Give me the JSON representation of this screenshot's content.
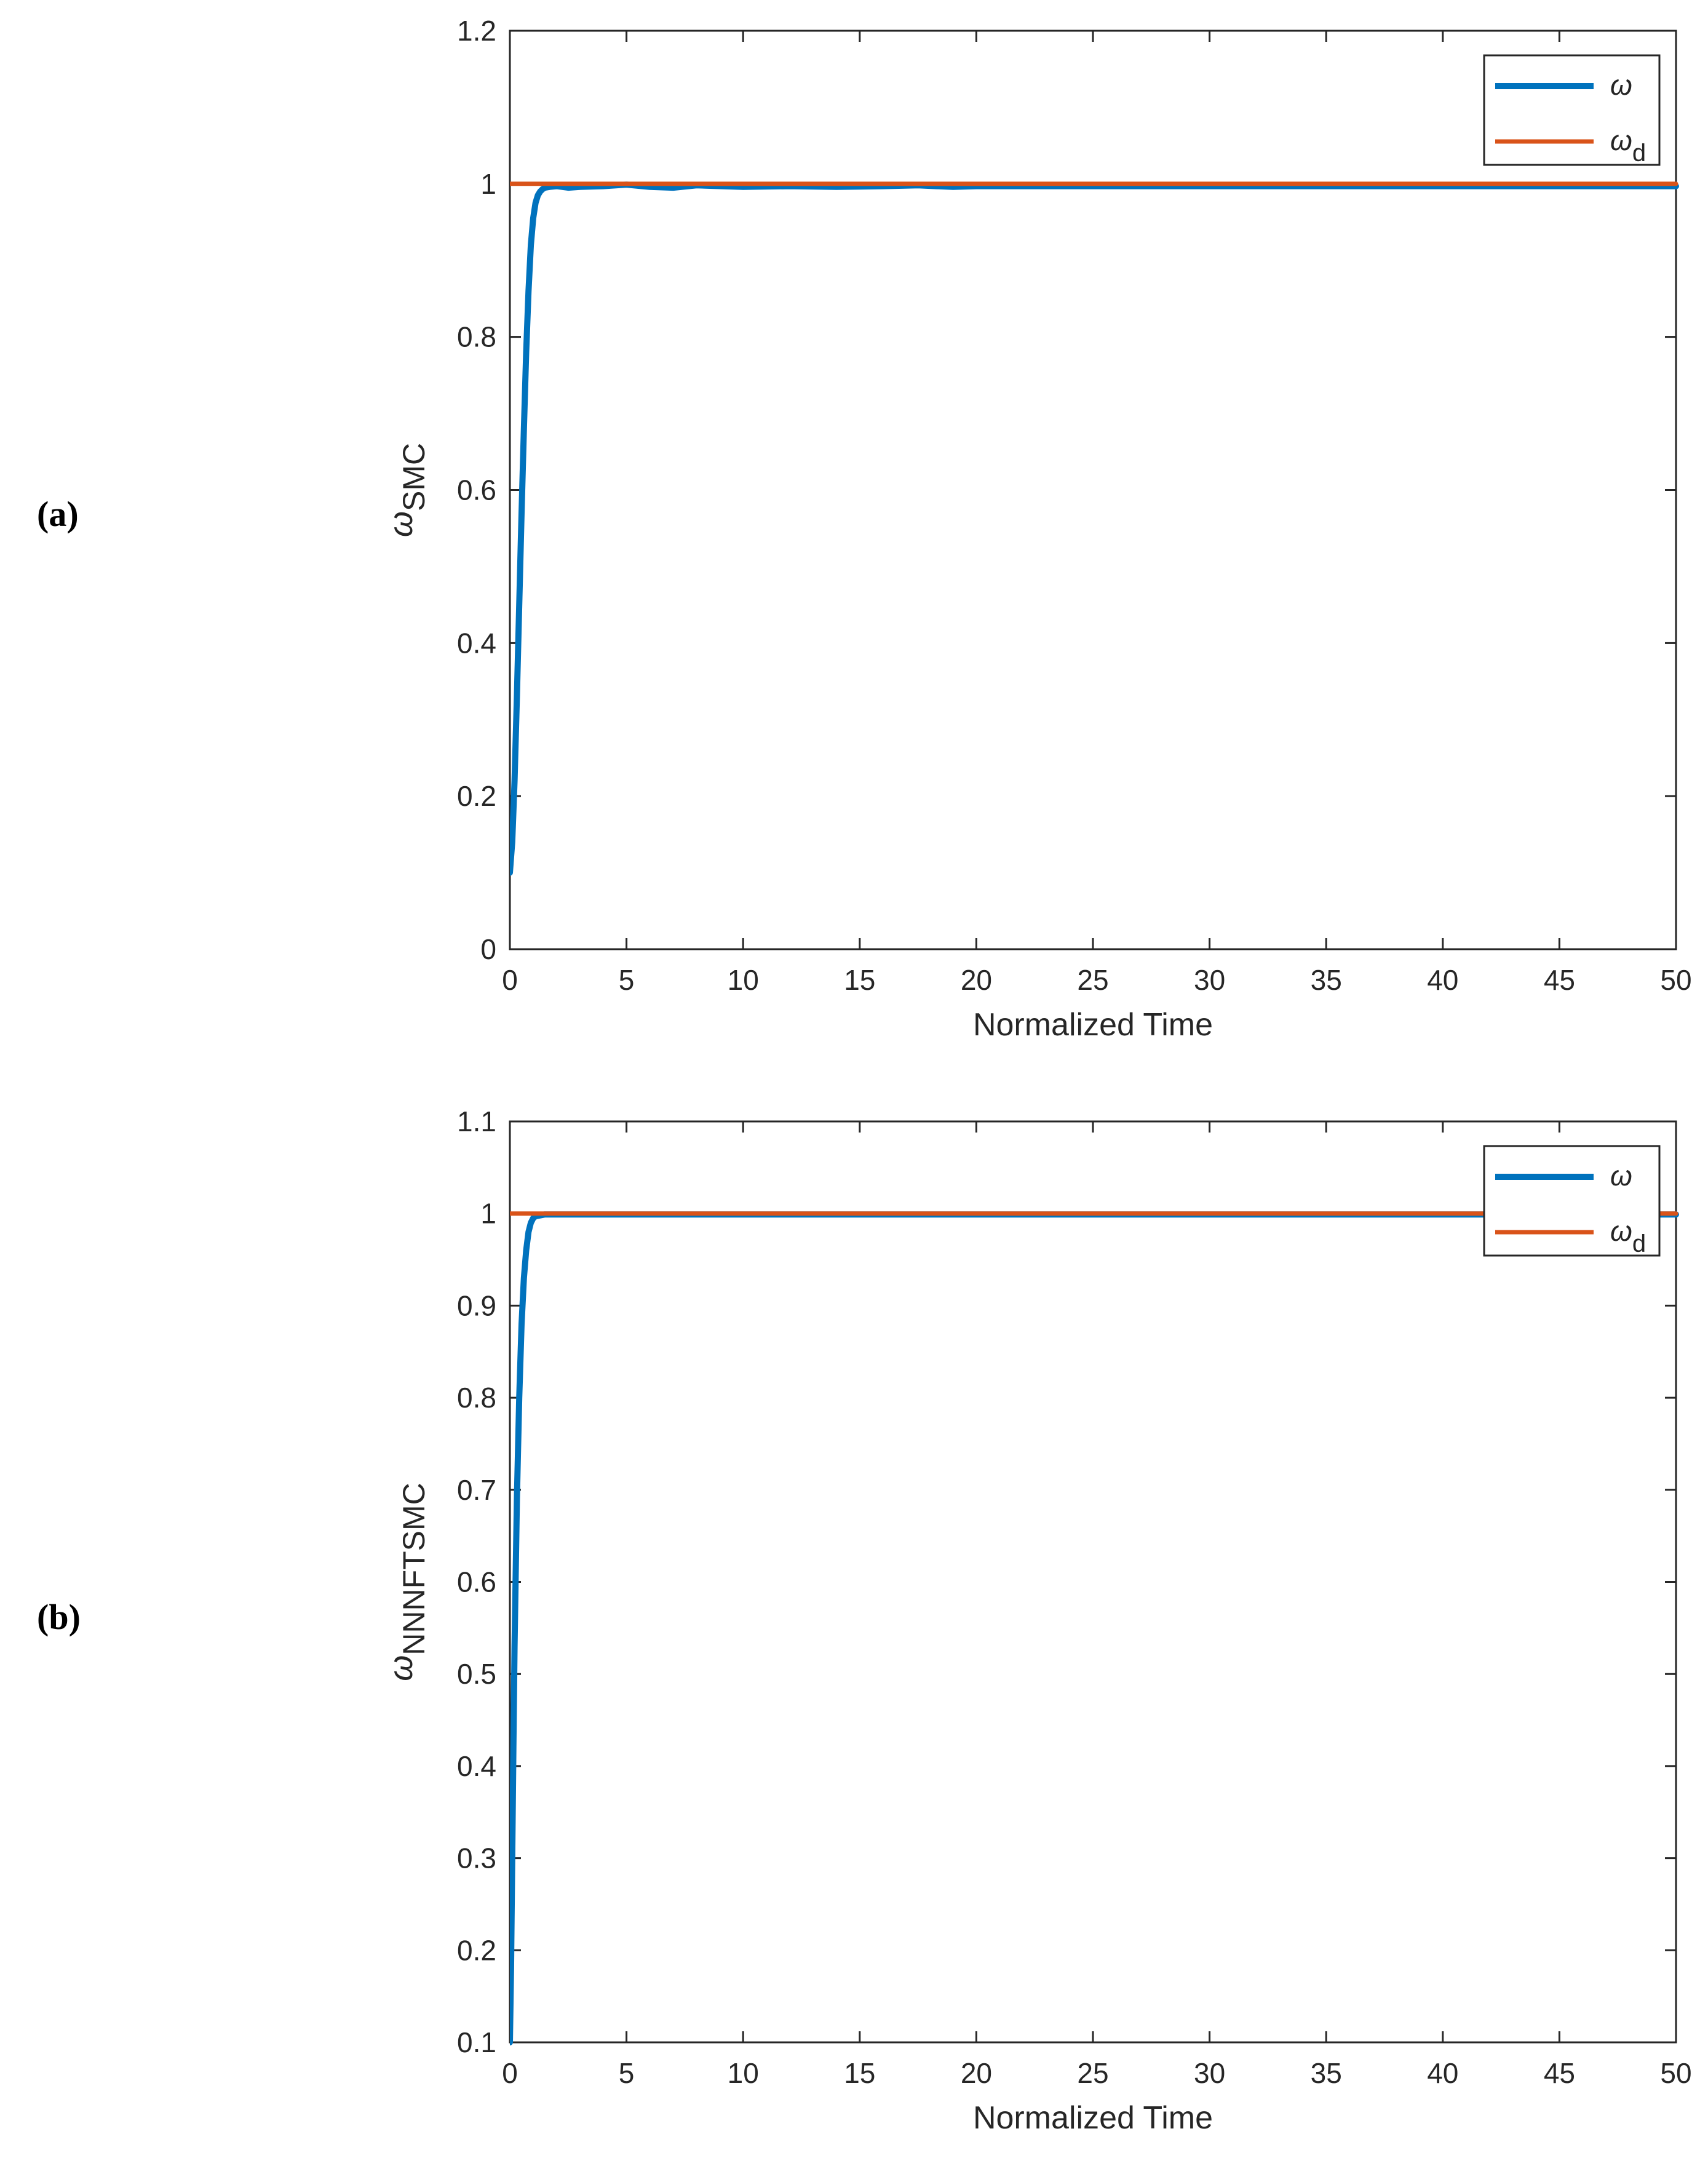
{
  "chart_data": [
    {
      "panel_label": "(a)",
      "type": "line",
      "xlabel": "Normalized Time",
      "ylabel_main": "ω",
      "ylabel_sub": "SMC",
      "xlim": [
        0,
        50
      ],
      "ylim": [
        0,
        1.2
      ],
      "x_ticks": [
        0,
        5,
        10,
        15,
        20,
        25,
        30,
        35,
        40,
        45,
        50
      ],
      "y_ticks": [
        0,
        0.2,
        0.4,
        0.6,
        0.8,
        1,
        1.2
      ],
      "grid": false,
      "legend_position": "top-right",
      "series": [
        {
          "legend_main": "ω",
          "legend_sub": "",
          "color": "#0072BD",
          "width": "thick",
          "x": [
            0,
            0.1,
            0.2,
            0.3,
            0.4,
            0.5,
            0.6,
            0.7,
            0.8,
            0.9,
            1.0,
            1.1,
            1.2,
            1.3,
            1.4,
            1.5,
            1.7,
            2.0,
            2.5,
            3,
            4,
            5,
            6,
            7,
            8,
            10,
            12,
            14,
            16,
            17.5,
            19,
            20,
            22,
            25,
            30,
            35,
            40,
            45,
            50
          ],
          "y": [
            0.1,
            0.14,
            0.22,
            0.33,
            0.45,
            0.57,
            0.68,
            0.78,
            0.86,
            0.92,
            0.955,
            0.975,
            0.985,
            0.99,
            0.993,
            0.995,
            0.996,
            0.997,
            0.995,
            0.996,
            0.997,
            0.999,
            0.996,
            0.995,
            0.998,
            0.996,
            0.997,
            0.996,
            0.997,
            0.998,
            0.996,
            0.997,
            0.997,
            0.997,
            0.997,
            0.997,
            0.997,
            0.997,
            0.997
          ]
        },
        {
          "legend_main": "ω",
          "legend_sub": "d",
          "color": "#D95319",
          "width": "normal",
          "x": [
            0,
            50
          ],
          "y": [
            1,
            1
          ]
        }
      ]
    },
    {
      "panel_label": "(b)",
      "type": "line",
      "xlabel": "Normalized Time",
      "ylabel_main": "ω",
      "ylabel_sub": "NNNFTSMC",
      "xlim": [
        0,
        50
      ],
      "ylim": [
        0.1,
        1.1
      ],
      "x_ticks": [
        0,
        5,
        10,
        15,
        20,
        25,
        30,
        35,
        40,
        45,
        50
      ],
      "y_ticks": [
        0.1,
        0.2,
        0.3,
        0.4,
        0.5,
        0.6,
        0.7,
        0.8,
        0.9,
        1,
        1.1
      ],
      "grid": false,
      "legend_position": "top-right",
      "series": [
        {
          "legend_main": "ω",
          "legend_sub": "",
          "color": "#0072BD",
          "width": "thick",
          "x": [
            0,
            0.05,
            0.1,
            0.15,
            0.2,
            0.3,
            0.4,
            0.5,
            0.6,
            0.7,
            0.8,
            0.9,
            1.0,
            1.1,
            1.3,
            1.5,
            2,
            3,
            5,
            10,
            20,
            30,
            40,
            50
          ],
          "y": [
            0.1,
            0.18,
            0.3,
            0.42,
            0.53,
            0.69,
            0.8,
            0.88,
            0.93,
            0.96,
            0.98,
            0.99,
            0.995,
            0.997,
            0.998,
            0.999,
            0.999,
            0.999,
            0.999,
            0.999,
            0.999,
            0.999,
            0.999,
            0.999
          ]
        },
        {
          "legend_main": "ω",
          "legend_sub": "d",
          "color": "#D95319",
          "width": "normal",
          "x": [
            0,
            50
          ],
          "y": [
            1,
            1
          ]
        }
      ]
    }
  ]
}
